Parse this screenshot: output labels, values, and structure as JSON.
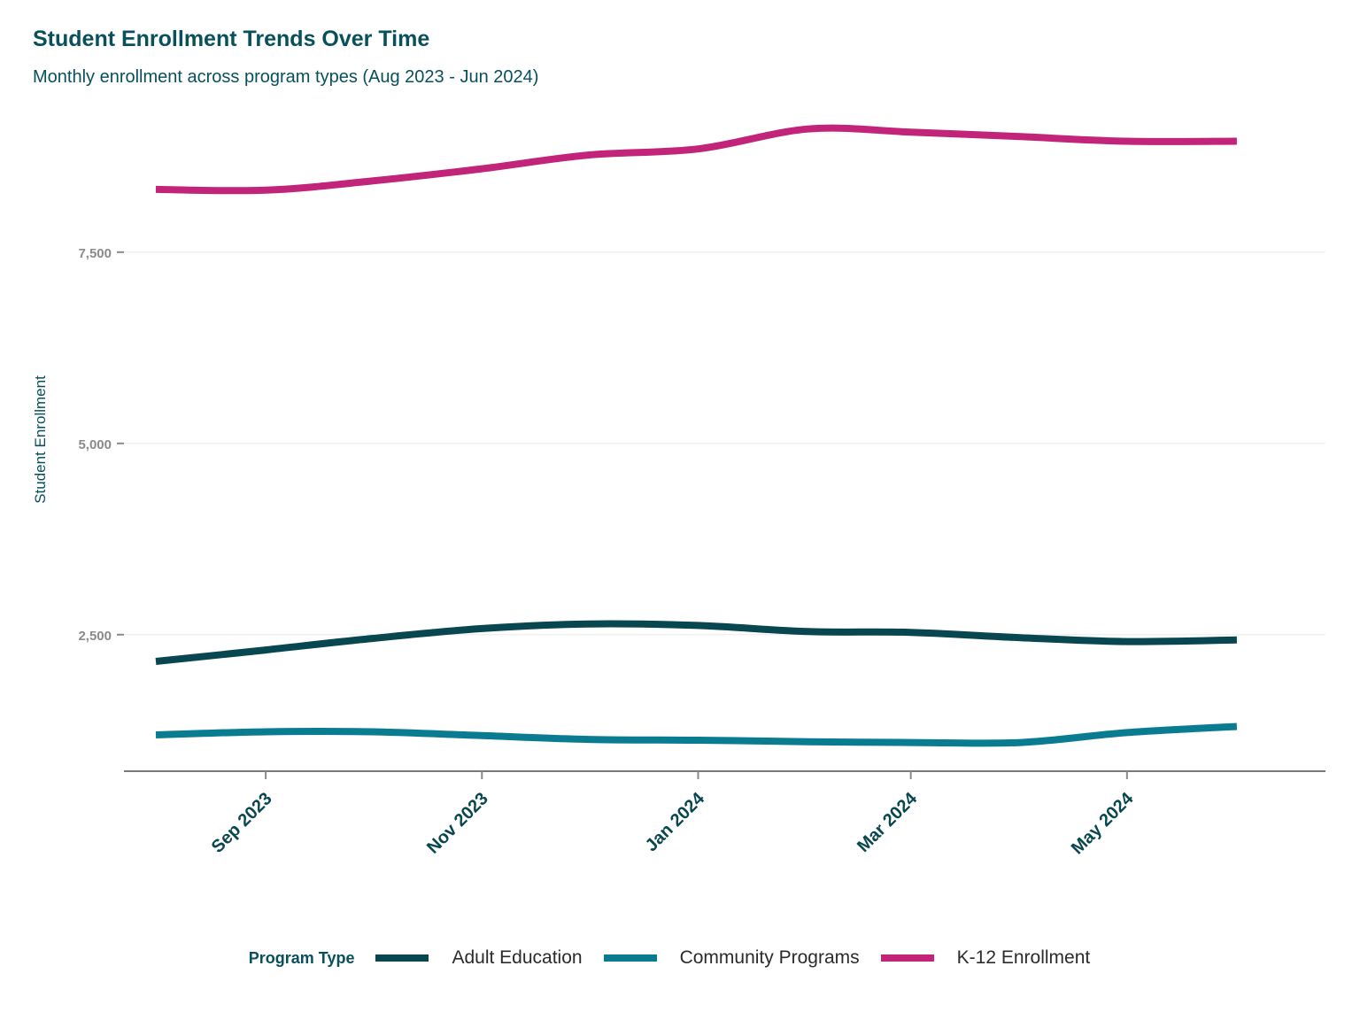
{
  "chart_data": {
    "type": "line",
    "title": "Student Enrollment Trends Over Time",
    "subtitle": "Monthly enrollment across program types (Aug 2023 - Jun 2024)",
    "xlabel": "",
    "ylabel": "Student Enrollment",
    "x": [
      "2023-08",
      "2023-09",
      "2023-10",
      "2023-11",
      "2023-12",
      "2024-01",
      "2024-02",
      "2024-03",
      "2024-04",
      "2024-05",
      "2024-06"
    ],
    "x_tick_labels": [
      {
        "date": "2023-09",
        "label": "Sep 2023"
      },
      {
        "date": "2023-11",
        "label": "Nov 2023"
      },
      {
        "date": "2024-01",
        "label": "Jan 2024"
      },
      {
        "date": "2024-03",
        "label": "Mar 2024"
      },
      {
        "date": "2024-05",
        "label": "May 2024"
      }
    ],
    "y_ticks": [
      {
        "value": 2500,
        "label": "2,500"
      },
      {
        "value": 5000,
        "label": "5,000"
      },
      {
        "value": 7500,
        "label": "7,500"
      }
    ],
    "xlim": [
      "2023-07-23",
      "2024-06-26"
    ],
    "ylim": [
      715,
      9500
    ],
    "series": [
      {
        "name": "Adult Education",
        "color": "#08474f",
        "values": [
          2150,
          2300,
          2450,
          2580,
          2640,
          2620,
          2540,
          2530,
          2460,
          2410,
          2430
        ]
      },
      {
        "name": "Community Programs",
        "color": "#0a7c91",
        "values": [
          1190,
          1230,
          1230,
          1180,
          1130,
          1120,
          1100,
          1090,
          1090,
          1220,
          1300
        ]
      },
      {
        "name": "K-12 Enrollment",
        "color": "#c2247a",
        "values": [
          8320,
          8310,
          8430,
          8590,
          8770,
          8850,
          9110,
          9070,
          9010,
          8950,
          8950
        ]
      }
    ],
    "grid": "horizontal major only",
    "legend_position": "bottom",
    "legend_title": "Program Type"
  }
}
